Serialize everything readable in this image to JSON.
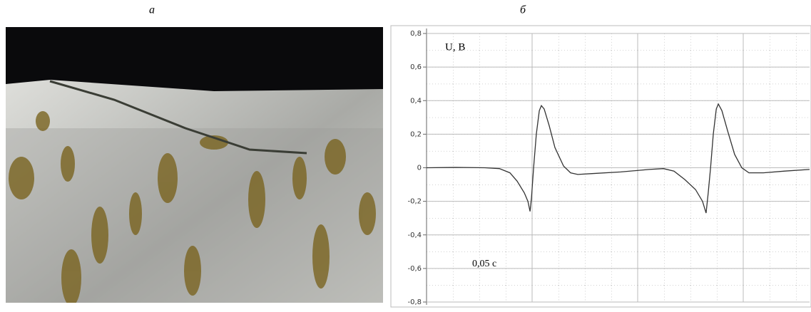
{
  "figure": {
    "labels": [
      "а",
      "б"
    ]
  },
  "chart_data": {
    "type": "line",
    "y_label": "U, В",
    "annotation": "0,05 с",
    "xlim": [
      0,
      0.1814
    ],
    "ylim": [
      -0.8,
      0.8
    ],
    "yticks": [
      {
        "value": 0.8,
        "label": "0,8"
      },
      {
        "value": 0.6,
        "label": "0,6"
      },
      {
        "value": 0.4,
        "label": "0,4"
      },
      {
        "value": 0.2,
        "label": "0,2"
      },
      0,
      {
        "value": -0.2,
        "label": "-0,2"
      },
      {
        "value": -0.4,
        "label": "-0,4"
      },
      {
        "value": -0.6,
        "label": "-0,6"
      },
      {
        "value": -0.8,
        "label": "-0,8"
      }
    ],
    "grid": true,
    "x": [
      0,
      0.0142,
      0.0277,
      0.0345,
      0.0395,
      0.0429,
      0.0463,
      0.048,
      0.049,
      0.0497,
      0.0507,
      0.052,
      0.0534,
      0.0544,
      0.0557,
      0.0581,
      0.0608,
      0.0649,
      0.0682,
      0.0716,
      0.0784,
      0.0919,
      0.1054,
      0.1122,
      0.1172,
      0.1223,
      0.1274,
      0.1307,
      0.1324,
      0.1334,
      0.1345,
      0.1358,
      0.1372,
      0.1382,
      0.1399,
      0.1426,
      0.1459,
      0.1493,
      0.1527,
      0.1595,
      0.1696,
      0.1814
    ],
    "series": [
      {
        "color": "#333333",
        "values": [
          0,
          0.002,
          0,
          -0.005,
          -0.03,
          -0.08,
          -0.15,
          -0.2,
          -0.26,
          -0.18,
          0,
          0.2,
          0.34,
          0.37,
          0.35,
          0.25,
          0.12,
          0.01,
          -0.03,
          -0.04,
          -0.035,
          -0.025,
          -0.01,
          -0.005,
          -0.02,
          -0.07,
          -0.13,
          -0.2,
          -0.27,
          -0.15,
          0,
          0.2,
          0.35,
          0.38,
          0.34,
          0.22,
          0.08,
          0,
          -0.03,
          -0.03,
          -0.02,
          -0.01
        ]
      }
    ]
  }
}
